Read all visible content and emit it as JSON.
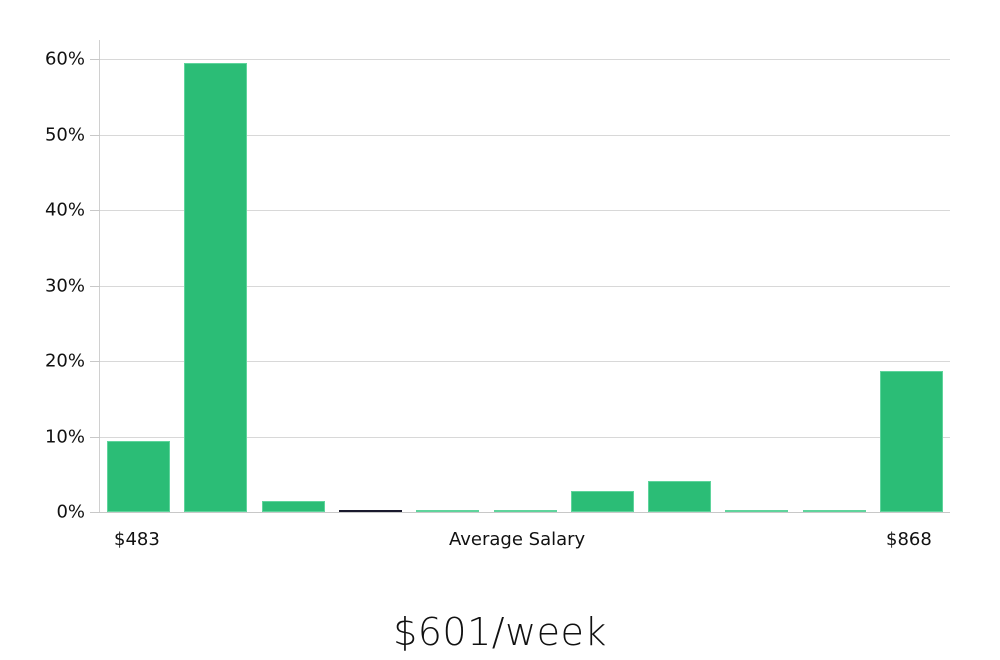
{
  "chart_data": {
    "type": "bar",
    "title": "",
    "xlabel": "Average Salary",
    "ylabel": "",
    "x_range_labels": {
      "min": "$483",
      "max": "$868"
    },
    "categories": [
      "bin1",
      "bin2",
      "bin3",
      "bin4",
      "bin5",
      "bin6",
      "bin7",
      "bin8",
      "bin9",
      "bin10",
      "bin11"
    ],
    "values": [
      9.4,
      59.5,
      1.5,
      0.2,
      0.2,
      0.2,
      2.8,
      4.1,
      0.2,
      0.2,
      18.7
    ],
    "highlight_index": 3,
    "yticks": [
      "0%",
      "10%",
      "20%",
      "30%",
      "40%",
      "50%",
      "60%"
    ],
    "ylim": [
      0,
      60
    ],
    "grid": true,
    "bar_color": "#2bbd76",
    "highlight_color": "#1a1a2e",
    "legend": null
  },
  "axis": {
    "x_min_label": "$483",
    "x_center_label": "Average Salary",
    "x_max_label": "$868"
  },
  "summary": {
    "value": "$601/week"
  }
}
